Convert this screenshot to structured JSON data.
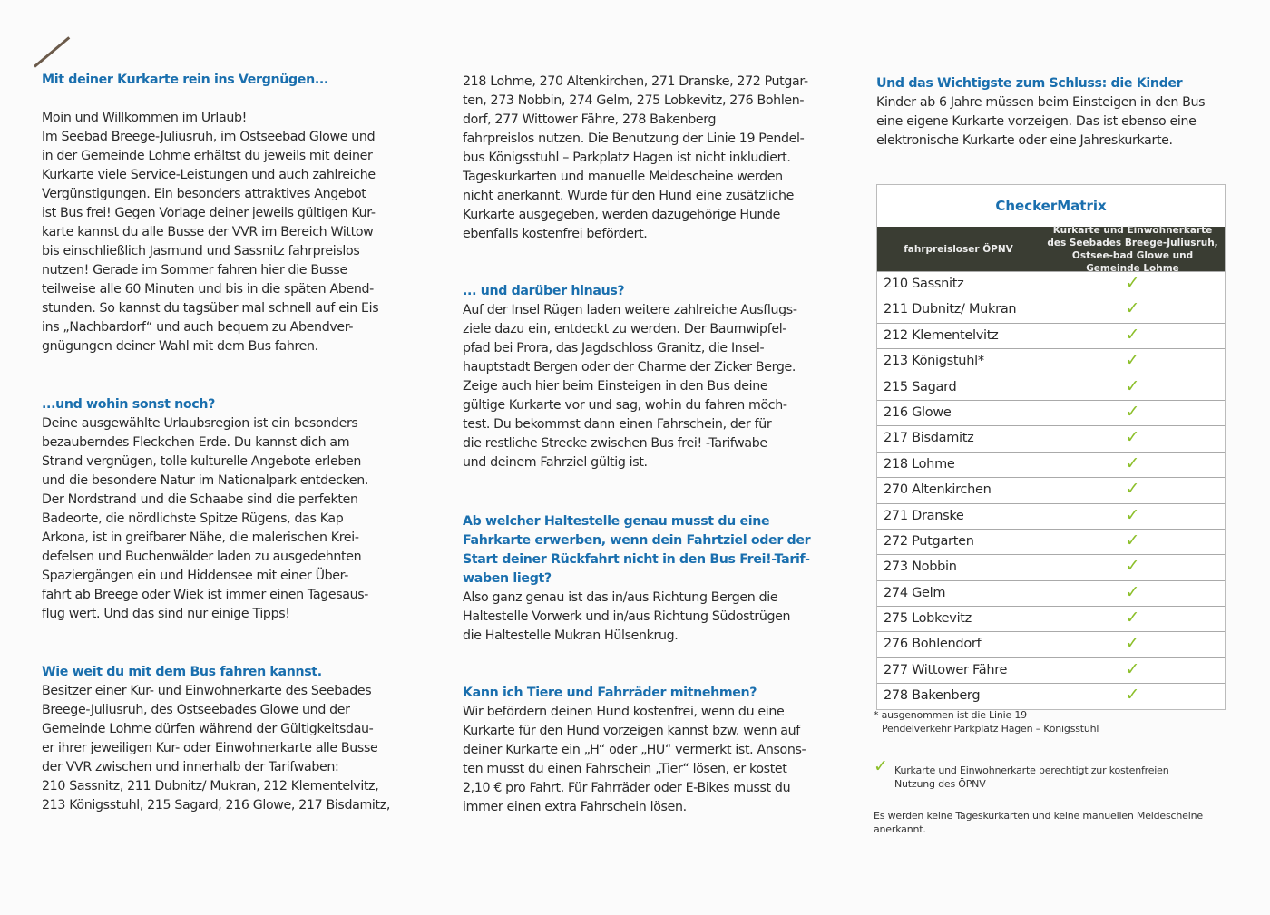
{
  "col1": {
    "h1": "Mit deiner Kurkarte rein ins Vergnügen...",
    "p1": [
      "Moin und Willkommen im Urlaub!",
      "Im Seebad Breege-Juliusruh, im Ostseebad Glowe und",
      "in der Gemeinde Lohme erhältst du jeweils mit deiner",
      "Kurkarte viele Service-Leistungen und auch zahlreiche",
      "Vergünstigungen. Ein besonders attraktives Angebot",
      "ist Bus frei! Gegen Vorlage deiner jeweils gültigen Kur-",
      "karte kannst du alle Busse der VVR im Bereich Wittow",
      "bis einschließlich Jasmund und Sassnitz fahrpreislos",
      "nutzen! Gerade im Sommer fahren hier die Busse",
      "teilweise alle 60 Minuten und bis in die späten Abend-",
      "stunden. So kannst du tagsüber mal schnell auf ein Eis",
      "ins „Nachbardorf“ und auch bequem zu Abendver-",
      "gnügungen deiner Wahl mit dem Bus fahren."
    ],
    "h2": "...und wohin sonst noch?",
    "p2": [
      "Deine ausgewählte Urlaubsregion ist ein besonders",
      "bezauberndes Fleckchen Erde. Du kannst dich am",
      "Strand vergnügen, tolle kulturelle Angebote erleben",
      "und die besondere Natur im Nationalpark entdecken.",
      "Der Nordstrand und die Schaabe sind die perfekten",
      "Badeorte, die nördlichste Spitze Rügens, das Kap",
      "Arkona, ist in greifbarer Nähe, die malerischen Krei-",
      "defelsen und Buchenwälder laden zu ausgedehnten",
      "Spaziergängen ein und Hiddensee mit einer Über-",
      "fahrt ab Breege oder Wiek ist immer einen Tagesaus-",
      "flug wert. Und das sind nur einige Tipps!"
    ],
    "h3": "Wie weit du mit dem Bus fahren kannst.",
    "p3": [
      "Besitzer einer Kur- und Einwohnerkarte des Seebades",
      "Breege-Juliusruh, des Ostseebades Glowe und der",
      "Gemeinde Lohme dürfen während der Gültigkeitsdau-",
      "er ihrer jeweiligen Kur- oder Einwohnerkarte alle Busse",
      "der VVR zwischen und innerhalb der Tarifwaben:",
      "210 Sassnitz, 211 Dubnitz/ Mukran, 212 Klementelvitz,",
      "213 Königsstuhl, 215 Sagard, 216 Glowe, 217 Bisdamitz,"
    ]
  },
  "col2": {
    "p1": [
      "218 Lohme, 270 Altenkirchen, 271 Dranske, 272 Putgar-",
      "ten, 273 Nobbin, 274 Gelm, 275 Lobkevitz, 276 Bohlen-",
      "dorf, 277 Wittower Fähre, 278 Bakenberg",
      "fahrpreislos nutzen. Die Benutzung der Linie 19 Pendel-",
      "bus Königsstuhl – Parkplatz Hagen ist nicht inkludiert.",
      "Tageskurkarten und manuelle Meldescheine werden",
      "nicht anerkannt. Wurde für den Hund eine zusätzliche",
      "Kurkarte ausgegeben, werden dazugehörige Hunde",
      "ebenfalls kostenfrei befördert."
    ],
    "h2": "... und darüber hinaus?",
    "p2": [
      "Auf der Insel Rügen laden weitere zahlreiche Ausflugs-",
      "ziele dazu ein, entdeckt zu werden. Der Baumwipfel-",
      "pfad bei Prora, das Jagdschloss Granitz, die Insel-",
      "hauptstadt Bergen oder der Charme der Zicker Berge.",
      "Zeige auch hier beim Einsteigen in den Bus deine",
      "gültige Kurkarte vor und sag, wohin du fahren möch-",
      "test. Du bekommst dann einen Fahrschein, der für",
      "die restliche Strecke zwischen Bus frei! -Tarifwabe",
      "und deinem Fahrziel gültig ist."
    ],
    "h3": [
      "Ab welcher Haltestelle genau musst du eine",
      "Fahrkarte erwerben, wenn dein Fahrtziel oder der",
      "Start deiner Rückfahrt nicht in den Bus Frei!-Tarif-",
      "waben liegt?"
    ],
    "p3": [
      "Also ganz genau ist das in/aus Richtung Bergen die",
      "Haltestelle Vorwerk und in/aus Richtung Südostrügen",
      "die Haltestelle Mukran Hülsenkrug."
    ],
    "h4": "Kann ich Tiere und Fahrräder mitnehmen?",
    "p4": [
      "Wir befördern deinen Hund kostenfrei, wenn du eine",
      "Kurkarte für den Hund vorzeigen kannst bzw. wenn auf",
      "deiner Kurkarte ein „H“ oder „HU“ vermerkt ist. Ansons-",
      "ten musst du einen Fahrschein „Tier“ lösen, er kostet",
      "2,10 € pro Fahrt. Für Fahrräder oder E-Bikes musst du",
      "immer einen extra Fahrschein lösen."
    ]
  },
  "col3": {
    "h1": "Und das Wichtigste zum Schluss: die Kinder",
    "p1": [
      "Kinder ab 6 Jahre müssen beim Einsteigen in den Bus",
      "eine eigene Kurkarte vorzeigen. Das ist ebenso eine",
      "elektronische Kurkarte oder eine Jahreskurkarte."
    ]
  },
  "table": {
    "title": "CheckerMatrix",
    "header_left": "fahrpreisloser ÖPNV",
    "header_right": "Kurkarte und Einwohnerkarte des Seebades Breege-Juliusruh, Ostsee-bad Glowe und Gemeinde Lohme",
    "check_symbol": "✓",
    "check_color": "#8cbf2a",
    "rows": [
      "210 Sassnitz",
      "211 Dubnitz/ Mukran",
      "212 Klementelvitz",
      "213 Königstuhl*",
      "215 Sagard",
      "216 Glowe",
      "217 Bisdamitz",
      "218 Lohme",
      "270 Altenkirchen",
      "271 Dranske",
      "272 Putgarten",
      "273 Nobbin",
      "274 Gelm",
      "275 Lobkevitz",
      "276 Bohlendorf",
      "277 Wittower Fähre",
      "278 Bakenberg"
    ]
  },
  "notes": {
    "footnote_1": "* ausgenommen ist die Linie 19",
    "footnote_2": "Pendelverkehr Parkplatz Hagen – Königsstuhl",
    "legend_1": "Kurkarte und Einwohnerkarte berechtigt zur kostenfreien",
    "legend_2": "Nutzung des ÖPNV",
    "final_1": "Es werden keine Tageskurkarten und keine manuellen Meldescheine",
    "final_2": "anerkannt."
  },
  "colors": {
    "heading": "#1a6fae",
    "table_header_bg": "#3a3d33"
  }
}
